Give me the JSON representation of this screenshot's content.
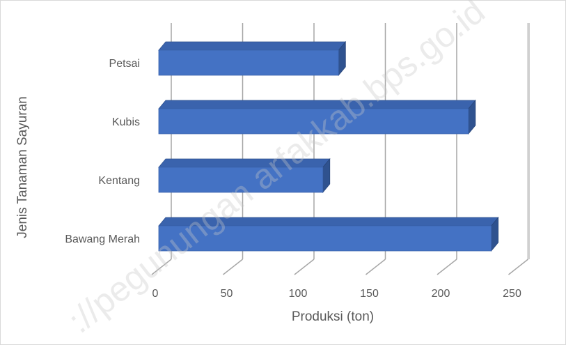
{
  "chart_data": {
    "type": "bar",
    "orientation": "horizontal",
    "style": "3d",
    "categories": [
      "Bawang Merah",
      "Kentang",
      "Kubis",
      "Petsai"
    ],
    "values": [
      233,
      115,
      217,
      126
    ],
    "xlabel": "Produksi (ton)",
    "ylabel": "Jenis Tanaman Sayuran",
    "xlim": [
      0,
      250
    ],
    "xticks": [
      0,
      50,
      100,
      150,
      200,
      250
    ],
    "grid": true,
    "legend": "none",
    "bar_color": "#4472c4",
    "bar_side_color": "#2f528f",
    "bar_top_color": "#3a63ad"
  },
  "watermark": "://pegunungan arfakkab.bps.go.id"
}
